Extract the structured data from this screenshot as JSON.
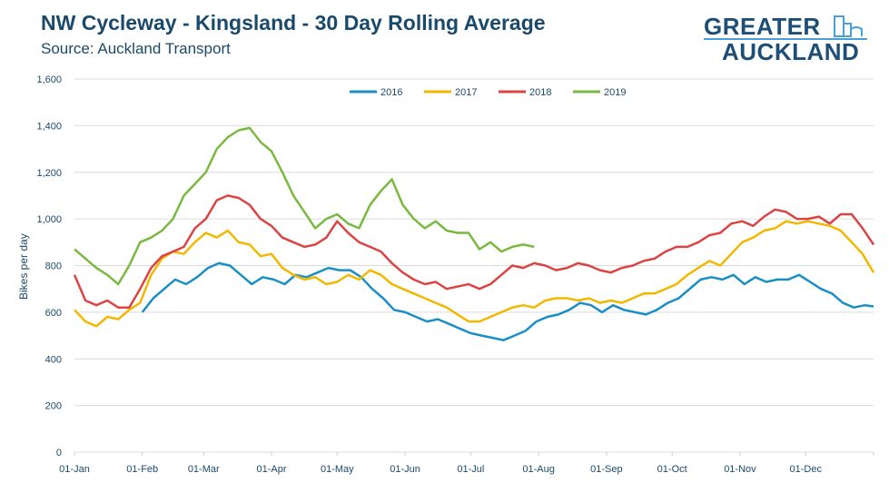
{
  "header": {
    "title": "NW Cycleway - Kingsland - 30 Day Rolling Average",
    "subtitle": "Source: Auckland Transport"
  },
  "logo": {
    "line1": "GREATER",
    "line2": "AUCKLAND"
  },
  "chart_data": {
    "type": "line",
    "title": "NW Cycleway - Kingsland - 30 Day Rolling Average",
    "subtitle": "Source: Auckland Transport",
    "xlabel": "",
    "ylabel": "Bikes per day",
    "ylim": [
      0,
      1600
    ],
    "yticks": [
      0,
      200,
      400,
      600,
      800,
      1000,
      1200,
      1400,
      1600
    ],
    "ytick_labels": [
      "0",
      "200",
      "400",
      "600",
      "800",
      "1,000",
      "1,200",
      "1,400",
      "1,600"
    ],
    "xticks_day": [
      0,
      31,
      59,
      90,
      120,
      151,
      181,
      212,
      243,
      273,
      304,
      334
    ],
    "xtick_labels": [
      "01-Jan",
      "01-Feb",
      "01-Mar",
      "01-Apr",
      "01-May",
      "01-Jun",
      "01-Jul",
      "01-Aug",
      "01-Sep",
      "01-Oct",
      "01-Nov",
      "01-Dec"
    ],
    "xlim_days": [
      0,
      365
    ],
    "grid": true,
    "legend": "top-center",
    "series": [
      {
        "name": "2016",
        "color": "#1a8fc6",
        "days": [
          31,
          36,
          41,
          46,
          51,
          56,
          61,
          66,
          71,
          76,
          81,
          86,
          91,
          96,
          101,
          106,
          111,
          116,
          121,
          126,
          131,
          136,
          141,
          146,
          151,
          156,
          161,
          166,
          171,
          176,
          181,
          186,
          191,
          196,
          201,
          206,
          211,
          216,
          221,
          226,
          231,
          236,
          241,
          246,
          251,
          256,
          261,
          266,
          271,
          276,
          281,
          286,
          291,
          296,
          301,
          306,
          311,
          316,
          321,
          326,
          331,
          336,
          341,
          346,
          351,
          356,
          361,
          365
        ],
        "values": [
          600,
          660,
          700,
          740,
          720,
          750,
          790,
          810,
          800,
          760,
          720,
          750,
          740,
          720,
          760,
          750,
          770,
          790,
          780,
          780,
          750,
          700,
          660,
          610,
          600,
          580,
          560,
          570,
          550,
          530,
          510,
          500,
          490,
          480,
          500,
          520,
          560,
          580,
          590,
          610,
          640,
          630,
          600,
          630,
          610,
          600,
          590,
          610,
          640,
          660,
          700,
          740,
          750,
          740,
          760,
          720,
          750,
          730,
          740,
          740,
          760,
          730,
          700,
          680,
          640,
          620,
          630,
          625
        ],
        "start_day": 31
      },
      {
        "name": "2017",
        "color": "#f2b800",
        "days": [
          0,
          5,
          10,
          15,
          20,
          25,
          30,
          35,
          40,
          45,
          50,
          55,
          60,
          65,
          70,
          75,
          80,
          85,
          90,
          95,
          100,
          105,
          110,
          115,
          120,
          125,
          130,
          135,
          140,
          145,
          150,
          155,
          160,
          165,
          170,
          175,
          180,
          185,
          190,
          195,
          200,
          205,
          210,
          215,
          220,
          225,
          230,
          235,
          240,
          245,
          250,
          255,
          260,
          265,
          270,
          275,
          280,
          285,
          290,
          295,
          300,
          305,
          310,
          315,
          320,
          325,
          330,
          335,
          340,
          345,
          350,
          355,
          360,
          365
        ],
        "values": [
          610,
          560,
          540,
          580,
          570,
          610,
          640,
          760,
          830,
          860,
          850,
          900,
          940,
          920,
          950,
          900,
          890,
          840,
          850,
          790,
          760,
          740,
          750,
          720,
          730,
          760,
          740,
          780,
          760,
          720,
          700,
          680,
          660,
          640,
          620,
          590,
          560,
          560,
          580,
          600,
          620,
          630,
          620,
          650,
          660,
          660,
          650,
          660,
          640,
          650,
          640,
          660,
          680,
          680,
          700,
          720,
          760,
          790,
          820,
          800,
          850,
          900,
          920,
          950,
          960,
          990,
          980,
          990,
          980,
          970,
          950,
          900,
          850,
          770
        ]
      },
      {
        "name": "2018",
        "color": "#dc4444",
        "days": [
          0,
          5,
          10,
          15,
          20,
          25,
          30,
          35,
          40,
          45,
          50,
          55,
          60,
          65,
          70,
          75,
          80,
          85,
          90,
          95,
          100,
          105,
          110,
          115,
          120,
          125,
          130,
          135,
          140,
          145,
          150,
          155,
          160,
          165,
          170,
          175,
          180,
          185,
          190,
          195,
          200,
          205,
          210,
          215,
          220,
          225,
          230,
          235,
          240,
          245,
          250,
          255,
          260,
          265,
          270,
          275,
          280,
          285,
          290,
          295,
          300,
          305,
          310,
          315,
          320,
          325,
          330,
          335,
          340,
          345,
          350,
          355,
          360,
          365
        ],
        "values": [
          760,
          650,
          630,
          650,
          620,
          620,
          700,
          790,
          840,
          860,
          880,
          960,
          1000,
          1080,
          1100,
          1090,
          1060,
          1000,
          970,
          920,
          900,
          880,
          890,
          920,
          990,
          940,
          900,
          880,
          860,
          810,
          770,
          740,
          720,
          730,
          700,
          710,
          720,
          700,
          720,
          760,
          800,
          790,
          810,
          800,
          780,
          790,
          810,
          800,
          780,
          770,
          790,
          800,
          820,
          830,
          860,
          880,
          880,
          900,
          930,
          940,
          980,
          990,
          970,
          1010,
          1040,
          1030,
          1000,
          1000,
          1010,
          980,
          1020,
          1020,
          960,
          890
        ]
      },
      {
        "name": "2019",
        "color": "#7ab940",
        "days": [
          0,
          5,
          10,
          15,
          20,
          25,
          30,
          35,
          40,
          45,
          50,
          55,
          60,
          65,
          70,
          75,
          80,
          85,
          90,
          95,
          100,
          105,
          110,
          115,
          120,
          125,
          130,
          135,
          140,
          145,
          150,
          155,
          160,
          165,
          170,
          175,
          180,
          185,
          190,
          195,
          200,
          205,
          210
        ],
        "values": [
          870,
          830,
          790,
          760,
          720,
          800,
          900,
          920,
          950,
          1000,
          1100,
          1150,
          1200,
          1300,
          1350,
          1380,
          1390,
          1330,
          1290,
          1200,
          1100,
          1030,
          960,
          1000,
          1020,
          980,
          960,
          1060,
          1120,
          1170,
          1060,
          1000,
          960,
          990,
          950,
          940,
          940,
          870,
          900,
          860,
          880,
          890,
          880
        ]
      }
    ]
  }
}
